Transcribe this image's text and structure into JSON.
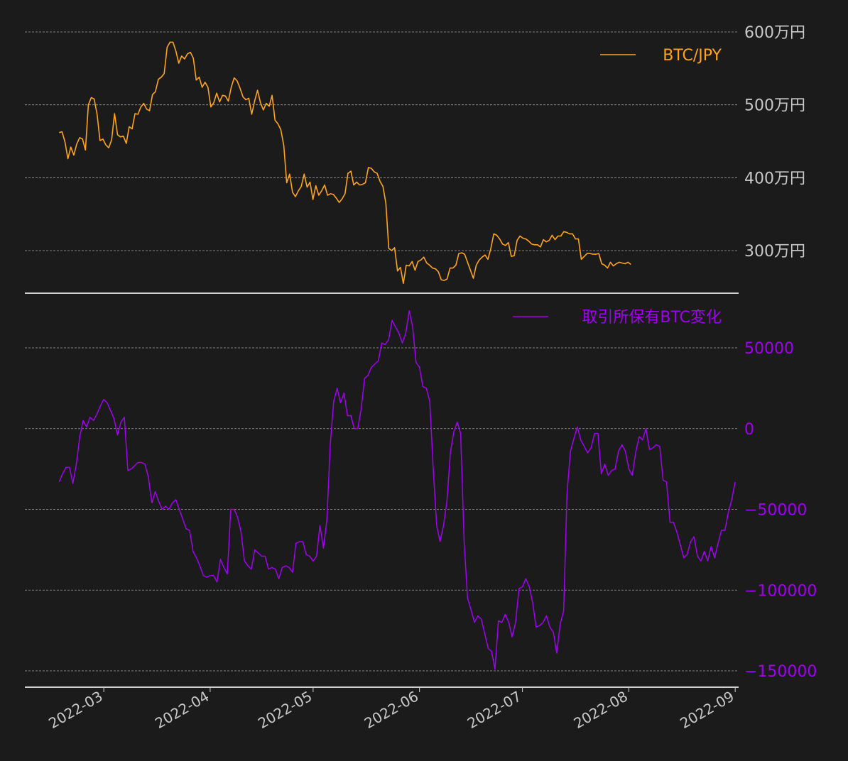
{
  "colors": {
    "background": "#1b1b1b",
    "btc": "#ffa31a",
    "reserve": "#a100f2",
    "axis_text": "#c8c8c8",
    "grid": "#cfcfcf"
  },
  "chart_data": [
    {
      "id": "top",
      "type": "line",
      "title": "",
      "legend_position": "top-right",
      "grid": true,
      "yaxis_side": "right",
      "ylim": [
        2400000,
        6350000
      ],
      "y_ticks": [
        3000000,
        4000000,
        5000000,
        6000000
      ],
      "y_tick_labels": [
        "300万円",
        "400万円",
        "500万円",
        "600万円"
      ],
      "y_tick_color": "axis_text",
      "series": [
        {
          "name": "BTC/JPY",
          "color": "btc",
          "x_start": "2022-02-16",
          "x_step_days": 0.85,
          "values": [
            4620000,
            4630000,
            4490000,
            4260000,
            4420000,
            4310000,
            4460000,
            4550000,
            4530000,
            4380000,
            5000000,
            5100000,
            5080000,
            4870000,
            4510000,
            4530000,
            4450000,
            4410000,
            4520000,
            4880000,
            4590000,
            4560000,
            4570000,
            4470000,
            4700000,
            4670000,
            4880000,
            4870000,
            4970000,
            5020000,
            4940000,
            4920000,
            5140000,
            5180000,
            5350000,
            5380000,
            5430000,
            5790000,
            5860000,
            5860000,
            5740000,
            5570000,
            5670000,
            5630000,
            5700000,
            5720000,
            5640000,
            5340000,
            5380000,
            5240000,
            5310000,
            5240000,
            4970000,
            5030000,
            5160000,
            5040000,
            5130000,
            5120000,
            5050000,
            5240000,
            5370000,
            5330000,
            5230000,
            5110000,
            5070000,
            5090000,
            4870000,
            5050000,
            5200000,
            5030000,
            4930000,
            5020000,
            4980000,
            5130000,
            4790000,
            4740000,
            4660000,
            4440000,
            3930000,
            4050000,
            3800000,
            3740000,
            3820000,
            3880000,
            4050000,
            3870000,
            3940000,
            3700000,
            3890000,
            3760000,
            3820000,
            3900000,
            3760000,
            3780000,
            3770000,
            3720000,
            3660000,
            3710000,
            3780000,
            4060000,
            4090000,
            3900000,
            3940000,
            3900000,
            3910000,
            3930000,
            4140000,
            4130000,
            4080000,
            4060000,
            3950000,
            3880000,
            3650000,
            3030000,
            3000000,
            3040000,
            2720000,
            2770000,
            2550000,
            2800000,
            2790000,
            2850000,
            2730000,
            2850000,
            2870000,
            2910000,
            2830000,
            2800000,
            2760000,
            2750000,
            2710000,
            2600000,
            2590000,
            2610000,
            2760000,
            2760000,
            2800000,
            2960000,
            2970000,
            2950000,
            2840000,
            2730000,
            2620000,
            2800000,
            2870000,
            2910000,
            2940000,
            2880000,
            3030000,
            3230000,
            3210000,
            3160000,
            3090000,
            3070000,
            3110000,
            2920000,
            2930000,
            3140000,
            3200000,
            3170000,
            3160000,
            3130000,
            3090000,
            3080000,
            3080000,
            3050000,
            3150000,
            3120000,
            3140000,
            3210000,
            3150000,
            3200000,
            3200000,
            3260000,
            3250000,
            3230000,
            3230000,
            3160000,
            3160000,
            2880000,
            2920000,
            2960000,
            2960000,
            2950000,
            2950000,
            2960000,
            2820000,
            2800000,
            2760000,
            2840000,
            2790000,
            2820000,
            2840000,
            2830000,
            2820000,
            2840000,
            2810000
          ]
        }
      ]
    },
    {
      "id": "bottom",
      "type": "line",
      "title": "",
      "legend_position": "top-right",
      "grid": true,
      "yaxis_side": "right",
      "ylim": [
        -160000,
        75000
      ],
      "y_ticks": [
        -150000,
        -100000,
        -50000,
        0,
        50000
      ],
      "y_tick_labels": [
        "−150000",
        "−100000",
        "−50000",
        "0",
        "50000"
      ],
      "y_tick_color": "reserve",
      "x_ticks": [
        "2022-03-01",
        "2022-04-01",
        "2022-05-01",
        "2022-06-01",
        "2022-07-01",
        "2022-08-01",
        "2022-09-01"
      ],
      "x_tick_labels": [
        "2022-03",
        "2022-04",
        "2022-05",
        "2022-06",
        "2022-07",
        "2022-08",
        "2022-09"
      ],
      "xlim": [
        "2022-02-06",
        "2022-09-02"
      ],
      "series": [
        {
          "name": "取引所保有BTC変化",
          "color": "reserve",
          "x_start": "2022-02-16",
          "x_step_days": 1,
          "values": [
            -33000,
            -28000,
            -24000,
            -24000,
            -34000,
            -22000,
            -5000,
            5000,
            1000,
            7000,
            5000,
            9000,
            14000,
            18000,
            16000,
            11000,
            6000,
            -4000,
            4000,
            7000,
            -26000,
            -25000,
            -23000,
            -21000,
            -21000,
            -22000,
            -30000,
            -46000,
            -39000,
            -45000,
            -50000,
            -48000,
            -50000,
            -46000,
            -44000,
            -50000,
            -56000,
            -62000,
            -63000,
            -76000,
            -80000,
            -85000,
            -91000,
            -92000,
            -91000,
            -91000,
            -95000,
            -81000,
            -86000,
            -90000,
            -50000,
            -50000,
            -55000,
            -64000,
            -82000,
            -85000,
            -87000,
            -75000,
            -77000,
            -79000,
            -79000,
            -87000,
            -86000,
            -87000,
            -93000,
            -86000,
            -85000,
            -86000,
            -89000,
            -71000,
            -70000,
            -70000,
            -78000,
            -79000,
            -82000,
            -79000,
            -60000,
            -74000,
            -57000,
            -10000,
            17000,
            25000,
            16000,
            22000,
            8000,
            8000,
            0,
            0,
            12000,
            31000,
            33000,
            38000,
            40000,
            42000,
            53000,
            52000,
            55000,
            67000,
            63000,
            59000,
            53000,
            59000,
            73000,
            63000,
            41000,
            38000,
            26000,
            25000,
            17000,
            -25000,
            -60000,
            -70000,
            -60000,
            -45000,
            -15000,
            -2000,
            4000,
            -3000,
            -70000,
            -105000,
            -112000,
            -120000,
            -116000,
            -118000,
            -127000,
            -136000,
            -138000,
            -149000,
            -119000,
            -120000,
            -115000,
            -120000,
            -129000,
            -120000,
            -99000,
            -98000,
            -93000,
            -98000,
            -108000,
            -123000,
            -122000,
            -120000,
            -116000,
            -123000,
            -126000,
            -139000,
            -121000,
            -113000,
            -40000,
            -14000,
            -6000,
            1000,
            -7000,
            -11000,
            -15000,
            -12000,
            -3000,
            -3000,
            -28000,
            -22000,
            -29000,
            -26000,
            -25000,
            -14000,
            -10000,
            -14000,
            -25000,
            -29000,
            -15000,
            -5000,
            -7000,
            0,
            -13000,
            -12000,
            -10000,
            -11000,
            -32000,
            -33000,
            -58000,
            -58000,
            -64000,
            -72000,
            -80000,
            -78000,
            -70000,
            -67000,
            -79000,
            -82000,
            -76000,
            -82000,
            -73000,
            -80000,
            -71000,
            -63000,
            -63000,
            -52000,
            -44000,
            -33000
          ]
        }
      ]
    }
  ]
}
